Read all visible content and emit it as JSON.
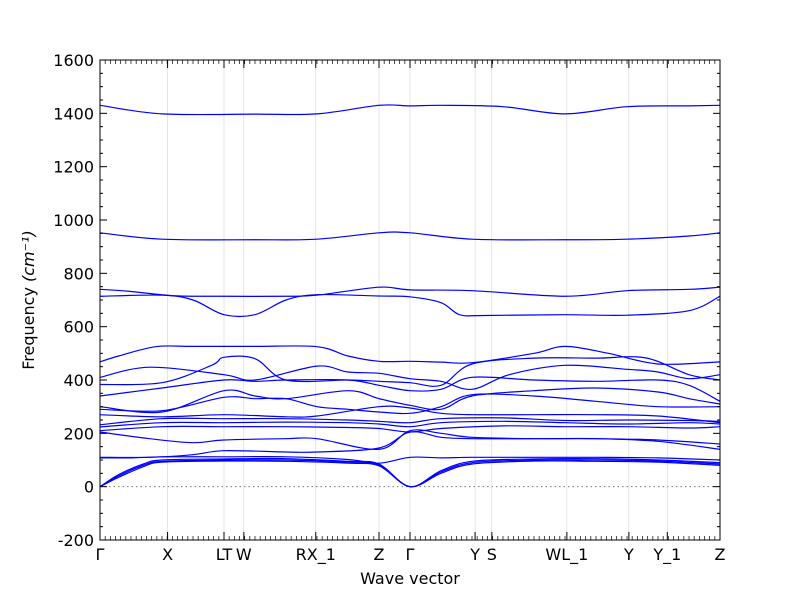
{
  "chart_data": {
    "type": "line",
    "xlabel": "Wave vector",
    "ylabel": "Frequency",
    "ylabel_unit": "(cm⁻¹)",
    "ylim": [
      -200,
      1600
    ],
    "yticks": [
      -200,
      0,
      200,
      400,
      600,
      800,
      1000,
      1200,
      1400,
      1600
    ],
    "xlim": [
      0,
      1
    ],
    "xticks": [
      {
        "label": "Γ",
        "x": 0.0
      },
      {
        "label": "X",
        "x": 0.109
      },
      {
        "label": "LT",
        "x": 0.2
      },
      {
        "label": "W",
        "x": 0.232
      },
      {
        "label": "RX_1",
        "x": 0.348
      },
      {
        "label": "Z",
        "x": 0.45
      },
      {
        "label": "Γ",
        "x": 0.5
      },
      {
        "label": "Y",
        "x": 0.605
      },
      {
        "label": "S",
        "x": 0.632
      },
      {
        "label": "WL_1",
        "x": 0.753
      },
      {
        "label": "Y",
        "x": 0.853
      },
      {
        "label": "Y_1",
        "x": 0.915
      },
      {
        "label": "Z",
        "x": 1.0
      }
    ],
    "line_color": "#0000ff",
    "zero_line": true,
    "series": [
      {
        "x": [
          0,
          0.1,
          0.25,
          0.35,
          0.45,
          0.5,
          0.55,
          0.65,
          0.75,
          0.85,
          0.95,
          1.0
        ],
        "y": [
          1430,
          1398,
          1397,
          1398,
          1430,
          1428,
          1430,
          1425,
          1398,
          1425,
          1428,
          1430
        ]
      },
      {
        "x": [
          0,
          0.1,
          0.25,
          0.35,
          0.45,
          0.5,
          0.6,
          0.75,
          0.85,
          0.95,
          1.0
        ],
        "y": [
          952,
          928,
          926,
          928,
          952,
          952,
          928,
          926,
          928,
          940,
          952
        ]
      },
      {
        "x": [
          0,
          0.05,
          0.12,
          0.2,
          0.3,
          0.35,
          0.45,
          0.5,
          0.6,
          0.75,
          0.85,
          0.95,
          1.0
        ],
        "y": [
          740,
          732,
          716,
          714,
          714,
          718,
          748,
          738,
          735,
          714,
          735,
          740,
          748
        ]
      },
      {
        "x": [
          0,
          0.1,
          0.15,
          0.2,
          0.25,
          0.3,
          0.35,
          0.45,
          0.5,
          0.55,
          0.58,
          0.62,
          0.75,
          0.85,
          0.95,
          1.0
        ],
        "y": [
          714,
          718,
          700,
          645,
          645,
          700,
          720,
          715,
          712,
          690,
          645,
          642,
          645,
          643,
          660,
          714
        ]
      },
      {
        "x": [
          0,
          0.03,
          0.09,
          0.15,
          0.25,
          0.35,
          0.4,
          0.45,
          0.5,
          0.55,
          0.6,
          0.7,
          0.75,
          0.82,
          0.9,
          1.0
        ],
        "y": [
          468,
          490,
          525,
          526,
          526,
          525,
          490,
          470,
          470,
          467,
          465,
          500,
          526,
          500,
          460,
          468
        ]
      },
      {
        "x": [
          0,
          0.08,
          0.2,
          0.25,
          0.35,
          0.4,
          0.45,
          0.5,
          0.55,
          0.6,
          0.66,
          0.75,
          0.85,
          0.9,
          0.95,
          1.0
        ],
        "y": [
          410,
          448,
          420,
          400,
          452,
          430,
          425,
          405,
          395,
          365,
          420,
          455,
          440,
          430,
          405,
          420
        ]
      },
      {
        "x": [
          0,
          0.1,
          0.18,
          0.2,
          0.25,
          0.3,
          0.4,
          0.45,
          0.5,
          0.55,
          0.6,
          0.7,
          0.8,
          0.88,
          0.95,
          1.0
        ],
        "y": [
          383,
          390,
          455,
          485,
          480,
          400,
          400,
          395,
          390,
          380,
          460,
          482,
          482,
          483,
          420,
          400
        ]
      },
      {
        "x": [
          0,
          0.1,
          0.2,
          0.25,
          0.3,
          0.4,
          0.45,
          0.5,
          0.55,
          0.6,
          0.7,
          0.8,
          0.9,
          0.95,
          1.0
        ],
        "y": [
          340,
          370,
          400,
          395,
          400,
          400,
          380,
          360,
          365,
          410,
          400,
          395,
          400,
          380,
          320
        ]
      },
      {
        "x": [
          0,
          0.1,
          0.2,
          0.25,
          0.3,
          0.4,
          0.45,
          0.5,
          0.55,
          0.6,
          0.7,
          0.8,
          0.9,
          0.95,
          1.0
        ],
        "y": [
          300,
          280,
          360,
          340,
          330,
          360,
          330,
          305,
          290,
          340,
          360,
          370,
          355,
          330,
          310
        ]
      },
      {
        "x": [
          0,
          0.1,
          0.2,
          0.25,
          0.3,
          0.35,
          0.4,
          0.45,
          0.5,
          0.55,
          0.6,
          0.7,
          0.8,
          0.9,
          1.0
        ],
        "y": [
          290,
          285,
          335,
          330,
          330,
          300,
          290,
          280,
          275,
          300,
          345,
          340,
          320,
          300,
          300
        ]
      },
      {
        "x": [
          0,
          0.1,
          0.2,
          0.3,
          0.35,
          0.45,
          0.5,
          0.55,
          0.6,
          0.7,
          0.8,
          0.9,
          1.0
        ],
        "y": [
          270,
          262,
          270,
          262,
          265,
          300,
          295,
          275,
          270,
          270,
          270,
          265,
          240
        ]
      },
      {
        "x": [
          0,
          0.1,
          0.2,
          0.3,
          0.4,
          0.45,
          0.5,
          0.55,
          0.65,
          0.75,
          0.85,
          0.95,
          1.0
        ],
        "y": [
          232,
          255,
          255,
          255,
          250,
          245,
          240,
          255,
          258,
          248,
          250,
          248,
          245
        ]
      },
      {
        "x": [
          0,
          0.1,
          0.2,
          0.3,
          0.4,
          0.45,
          0.5,
          0.55,
          0.65,
          0.75,
          0.85,
          0.95,
          1.0
        ],
        "y": [
          224,
          240,
          240,
          242,
          240,
          235,
          225,
          240,
          245,
          240,
          235,
          240,
          235
        ]
      },
      {
        "x": [
          0,
          0.1,
          0.2,
          0.3,
          0.4,
          0.45,
          0.5,
          0.55,
          0.65,
          0.75,
          0.85,
          0.95,
          1.0
        ],
        "y": [
          210,
          225,
          225,
          225,
          222,
          218,
          205,
          218,
          228,
          225,
          225,
          220,
          225
        ]
      },
      {
        "x": [
          0,
          0.08,
          0.15,
          0.2,
          0.3,
          0.35,
          0.45,
          0.5,
          0.55,
          0.6,
          0.7,
          0.8,
          0.9,
          1.0
        ],
        "y": [
          205,
          180,
          165,
          175,
          180,
          180,
          140,
          210,
          200,
          185,
          180,
          180,
          170,
          140
        ]
      },
      {
        "x": [
          0,
          0.08,
          0.15,
          0.2,
          0.3,
          0.35,
          0.45,
          0.5,
          0.55,
          0.6,
          0.7,
          0.8,
          0.9,
          1.0
        ],
        "y": [
          110,
          110,
          120,
          135,
          130,
          130,
          145,
          205,
          185,
          180,
          180,
          180,
          175,
          160
        ]
      },
      {
        "x": [
          0,
          0.05,
          0.1,
          0.2,
          0.3,
          0.4,
          0.45,
          0.5,
          0.55,
          0.6,
          0.7,
          0.8,
          0.9,
          1.0
        ],
        "y": [
          108,
          108,
          112,
          112,
          112,
          102,
          88,
          110,
          108,
          110,
          110,
          110,
          108,
          100
        ]
      },
      {
        "x": [
          0,
          0.03,
          0.07,
          0.1,
          0.2,
          0.3,
          0.4,
          0.45,
          0.5,
          0.55,
          0.6,
          0.7,
          0.8,
          0.9,
          1.0
        ],
        "y": [
          0,
          45,
          85,
          100,
          104,
          105,
          95,
          85,
          0,
          60,
          95,
          104,
          105,
          100,
          90
        ]
      },
      {
        "x": [
          0,
          0.03,
          0.07,
          0.1,
          0.2,
          0.3,
          0.4,
          0.45,
          0.5,
          0.55,
          0.6,
          0.7,
          0.8,
          0.9,
          1.0
        ],
        "y": [
          0,
          40,
          80,
          95,
          100,
          100,
          92,
          82,
          0,
          55,
          90,
          100,
          100,
          96,
          85
        ]
      },
      {
        "x": [
          0,
          0.03,
          0.07,
          0.1,
          0.2,
          0.3,
          0.4,
          0.45,
          0.5,
          0.55,
          0.6,
          0.7,
          0.8,
          0.9,
          1.0
        ],
        "y": [
          0,
          35,
          75,
          92,
          96,
          95,
          88,
          78,
          0,
          50,
          85,
          96,
          95,
          92,
          80
        ]
      }
    ]
  }
}
